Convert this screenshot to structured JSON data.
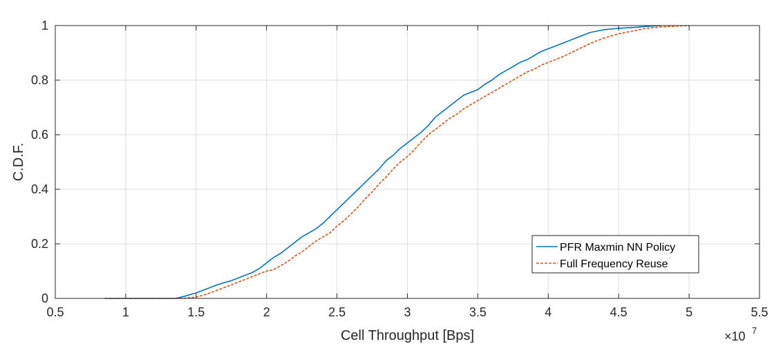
{
  "chart_data": {
    "type": "line",
    "xlabel": "Cell Throughput [Bps]",
    "ylabel": "C.D.F.",
    "x_multiplier": {
      "base": "×10",
      "exponent": "7"
    },
    "xlim": [
      0.5,
      5.5
    ],
    "ylim": [
      0,
      1
    ],
    "xticks": [
      0.5,
      1,
      1.5,
      2,
      2.5,
      3,
      3.5,
      4,
      4.5,
      5,
      5.5
    ],
    "xtick_labels": [
      "0.5",
      "1",
      "1.5",
      "2",
      "2.5",
      "3",
      "3.5",
      "4",
      "4.5",
      "5",
      "5.5"
    ],
    "yticks": [
      0,
      0.2,
      0.4,
      0.6,
      0.8,
      1
    ],
    "ytick_labels": [
      "0",
      "0.2",
      "0.4",
      "0.6",
      "0.8",
      "1"
    ],
    "grid": true,
    "legend_position": "lower-right",
    "series": [
      {
        "name": "PFR Maxmin NN Policy",
        "color": "#0072BD",
        "style": "solid",
        "x": [
          0.85,
          1.0,
          1.2,
          1.35,
          1.38,
          1.42,
          1.45,
          1.5,
          1.55,
          1.6,
          1.65,
          1.7,
          1.75,
          1.8,
          1.85,
          1.9,
          1.95,
          2.0,
          2.05,
          2.1,
          2.15,
          2.2,
          2.25,
          2.3,
          2.35,
          2.4,
          2.45,
          2.5,
          2.55,
          2.6,
          2.65,
          2.7,
          2.75,
          2.8,
          2.85,
          2.9,
          2.95,
          3.0,
          3.05,
          3.1,
          3.15,
          3.2,
          3.25,
          3.3,
          3.35,
          3.4,
          3.45,
          3.5,
          3.55,
          3.6,
          3.65,
          3.7,
          3.75,
          3.8,
          3.85,
          3.9,
          3.95,
          4.0,
          4.1,
          4.2,
          4.3,
          4.4,
          4.5,
          4.6,
          4.7,
          4.8
        ],
        "y": [
          0,
          0,
          0,
          0,
          0.003,
          0.008,
          0.013,
          0.02,
          0.03,
          0.04,
          0.05,
          0.058,
          0.065,
          0.075,
          0.085,
          0.095,
          0.11,
          0.13,
          0.15,
          0.165,
          0.185,
          0.205,
          0.225,
          0.24,
          0.255,
          0.275,
          0.3,
          0.325,
          0.35,
          0.375,
          0.4,
          0.425,
          0.45,
          0.475,
          0.505,
          0.525,
          0.55,
          0.57,
          0.59,
          0.61,
          0.635,
          0.665,
          0.685,
          0.705,
          0.725,
          0.745,
          0.755,
          0.765,
          0.785,
          0.8,
          0.82,
          0.835,
          0.85,
          0.865,
          0.875,
          0.89,
          0.905,
          0.915,
          0.935,
          0.955,
          0.975,
          0.985,
          0.99,
          0.993,
          0.997,
          1.0
        ]
      },
      {
        "name": "Full Frequency Reuse",
        "color": "#D95319",
        "style": "dashed",
        "x": [
          0.85,
          1.0,
          1.2,
          1.4,
          1.5,
          1.55,
          1.6,
          1.65,
          1.7,
          1.75,
          1.8,
          1.85,
          1.9,
          1.95,
          2.0,
          2.05,
          2.1,
          2.15,
          2.2,
          2.25,
          2.3,
          2.35,
          2.4,
          2.45,
          2.5,
          2.55,
          2.6,
          2.65,
          2.7,
          2.75,
          2.8,
          2.85,
          2.9,
          2.95,
          3.0,
          3.05,
          3.1,
          3.15,
          3.2,
          3.25,
          3.3,
          3.35,
          3.4,
          3.45,
          3.5,
          3.55,
          3.6,
          3.65,
          3.7,
          3.75,
          3.8,
          3.85,
          3.9,
          3.95,
          4.0,
          4.1,
          4.2,
          4.3,
          4.4,
          4.5,
          4.6,
          4.7,
          4.8,
          4.9,
          5.0
        ],
        "y": [
          0,
          0,
          0,
          0,
          0.005,
          0.012,
          0.02,
          0.03,
          0.04,
          0.05,
          0.06,
          0.07,
          0.08,
          0.09,
          0.1,
          0.105,
          0.12,
          0.135,
          0.155,
          0.17,
          0.19,
          0.21,
          0.225,
          0.24,
          0.265,
          0.285,
          0.31,
          0.335,
          0.365,
          0.39,
          0.42,
          0.445,
          0.475,
          0.5,
          0.52,
          0.545,
          0.575,
          0.6,
          0.62,
          0.64,
          0.66,
          0.675,
          0.695,
          0.71,
          0.725,
          0.74,
          0.755,
          0.77,
          0.785,
          0.8,
          0.815,
          0.83,
          0.84,
          0.855,
          0.865,
          0.885,
          0.91,
          0.935,
          0.955,
          0.97,
          0.98,
          0.99,
          0.995,
          0.998,
          1.0
        ]
      }
    ]
  }
}
